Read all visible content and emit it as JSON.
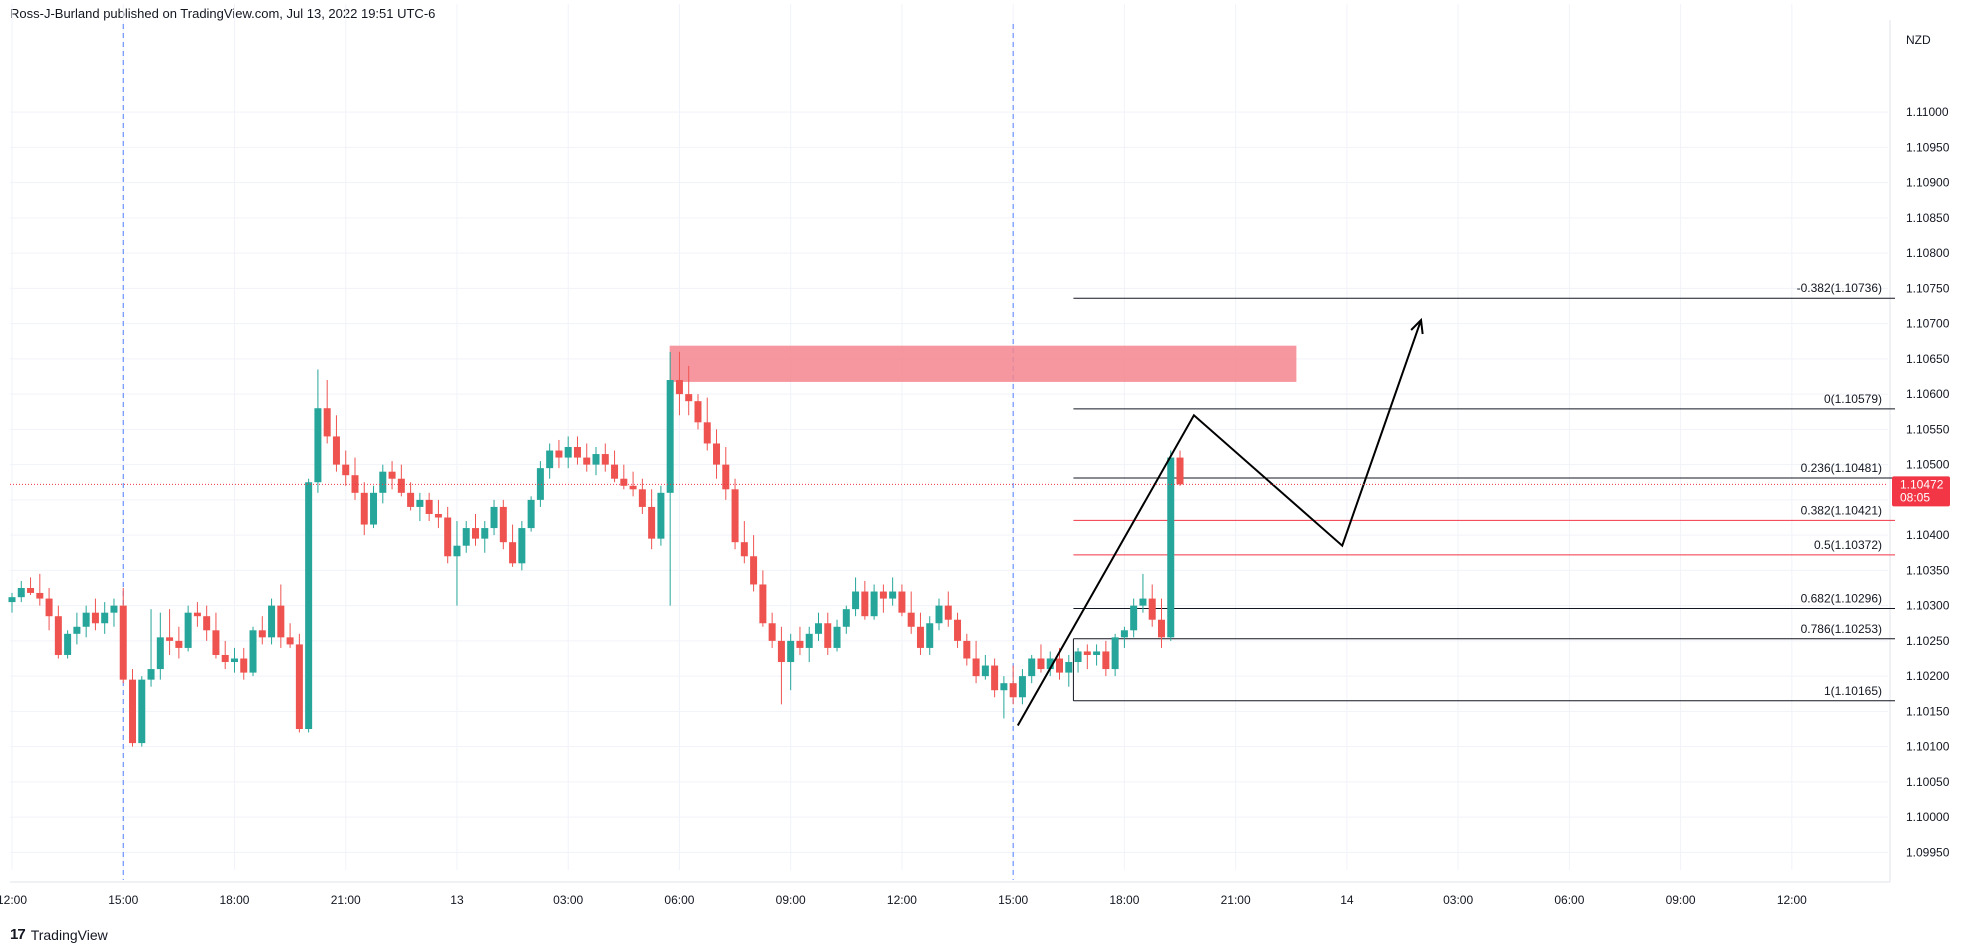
{
  "header": {
    "published": "Ross-J-Burland published on TradingView.com, Jul 13, 2022 19:51 UTC-6"
  },
  "footer": {
    "brand": "TradingView",
    "logo_glyph": "17"
  },
  "colors": {
    "up": "#26a69a",
    "down": "#ef5350",
    "grid": "#f0f3fa",
    "zone": "#f5868f",
    "last_price": "#f23645",
    "drawing": "#000000",
    "fib_red": "#f23645"
  },
  "chart_data": {
    "type": "candlestick",
    "symbol_currency": "NZD",
    "ylim": [
      1.09925,
      1.11125
    ],
    "y_ticks": [
      "1.11000",
      "1.10950",
      "1.10900",
      "1.10850",
      "1.10800",
      "1.10750",
      "1.10700",
      "1.10650",
      "1.10600",
      "1.10550",
      "1.10500",
      "1.10450",
      "1.10400",
      "1.10350",
      "1.10300",
      "1.10250",
      "1.10200",
      "1.10150",
      "1.10100",
      "1.10050",
      "1.10000",
      "1.09950"
    ],
    "x_ticks": [
      {
        "label": "12:00",
        "bar": 0
      },
      {
        "label": "15:00",
        "bar": 12
      },
      {
        "label": "18:00",
        "bar": 24
      },
      {
        "label": "21:00",
        "bar": 36
      },
      {
        "label": "13",
        "bar": 48
      },
      {
        "label": "03:00",
        "bar": 60
      },
      {
        "label": "06:00",
        "bar": 72
      },
      {
        "label": "09:00",
        "bar": 84
      },
      {
        "label": "12:00",
        "bar": 96
      },
      {
        "label": "15:00",
        "bar": 108
      },
      {
        "label": "18:00",
        "bar": 120
      },
      {
        "label": "21:00",
        "bar": 132
      },
      {
        "label": "14",
        "bar": 144
      },
      {
        "label": "03:00",
        "bar": 156
      },
      {
        "label": "06:00",
        "bar": 168
      },
      {
        "label": "09:00",
        "bar": 180
      },
      {
        "label": "12:00",
        "bar": 192
      }
    ],
    "session_breaks_bar": [
      12,
      108
    ],
    "last_price": {
      "value": "1.10472",
      "countdown": "08:05"
    },
    "candles": [
      [
        1.10305,
        1.10318,
        1.1029,
        1.10312
      ],
      [
        1.10312,
        1.10335,
        1.10305,
        1.10325
      ],
      [
        1.10325,
        1.1034,
        1.10315,
        1.10318
      ],
      [
        1.10318,
        1.10345,
        1.103,
        1.1031
      ],
      [
        1.1031,
        1.10325,
        1.10265,
        1.10285
      ],
      [
        1.10285,
        1.103,
        1.10225,
        1.1023
      ],
      [
        1.1023,
        1.10265,
        1.10225,
        1.1026
      ],
      [
        1.1026,
        1.1029,
        1.10245,
        1.1027
      ],
      [
        1.1027,
        1.103,
        1.10255,
        1.1029
      ],
      [
        1.1029,
        1.1031,
        1.10265,
        1.10275
      ],
      [
        1.10275,
        1.10305,
        1.1026,
        1.1029
      ],
      [
        1.1029,
        1.1031,
        1.1027,
        1.103
      ],
      [
        1.103,
        1.10325,
        1.1019,
        1.10195
      ],
      [
        1.10195,
        1.1021,
        1.101,
        1.10105
      ],
      [
        1.10105,
        1.102,
        1.101,
        1.10195
      ],
      [
        1.10195,
        1.10295,
        1.10185,
        1.1021
      ],
      [
        1.1021,
        1.1029,
        1.10195,
        1.10255
      ],
      [
        1.10255,
        1.10295,
        1.1023,
        1.1025
      ],
      [
        1.1025,
        1.1027,
        1.10225,
        1.1024
      ],
      [
        1.1024,
        1.103,
        1.10235,
        1.1029
      ],
      [
        1.1029,
        1.10305,
        1.1027,
        1.10285
      ],
      [
        1.10285,
        1.103,
        1.1025,
        1.10265
      ],
      [
        1.10265,
        1.1029,
        1.10225,
        1.1023
      ],
      [
        1.1023,
        1.1025,
        1.1021,
        1.1022
      ],
      [
        1.1022,
        1.1024,
        1.10205,
        1.10225
      ],
      [
        1.10225,
        1.1024,
        1.10195,
        1.10205
      ],
      [
        1.10205,
        1.1027,
        1.102,
        1.10265
      ],
      [
        1.10265,
        1.10285,
        1.10245,
        1.10255
      ],
      [
        1.10255,
        1.1031,
        1.10245,
        1.103
      ],
      [
        1.103,
        1.1033,
        1.1024,
        1.10255
      ],
      [
        1.10255,
        1.10275,
        1.1024,
        1.10245
      ],
      [
        1.10245,
        1.1026,
        1.1012,
        1.10125
      ],
      [
        1.10125,
        1.1048,
        1.1012,
        1.10475
      ],
      [
        1.10475,
        1.10635,
        1.1046,
        1.1058
      ],
      [
        1.1058,
        1.1062,
        1.1053,
        1.1054
      ],
      [
        1.1054,
        1.1057,
        1.1049,
        1.105
      ],
      [
        1.105,
        1.1052,
        1.1047,
        1.10485
      ],
      [
        1.10485,
        1.1051,
        1.1045,
        1.1046
      ],
      [
        1.1046,
        1.10475,
        1.104,
        1.10415
      ],
      [
        1.10415,
        1.1047,
        1.1041,
        1.1046
      ],
      [
        1.1046,
        1.105,
        1.10445,
        1.1049
      ],
      [
        1.1049,
        1.10505,
        1.10465,
        1.1048
      ],
      [
        1.1048,
        1.105,
        1.10455,
        1.1046
      ],
      [
        1.1046,
        1.10475,
        1.10435,
        1.1044
      ],
      [
        1.1044,
        1.1046,
        1.1042,
        1.1045
      ],
      [
        1.1045,
        1.1046,
        1.1042,
        1.1043
      ],
      [
        1.1043,
        1.1045,
        1.1041,
        1.10425
      ],
      [
        1.10425,
        1.1044,
        1.1036,
        1.1037
      ],
      [
        1.1037,
        1.1042,
        1.103,
        1.10385
      ],
      [
        1.10385,
        1.1042,
        1.10375,
        1.1041
      ],
      [
        1.1041,
        1.1043,
        1.10385,
        1.10395
      ],
      [
        1.10395,
        1.1042,
        1.10375,
        1.1041
      ],
      [
        1.1041,
        1.1045,
        1.104,
        1.1044
      ],
      [
        1.1044,
        1.1045,
        1.1038,
        1.1039
      ],
      [
        1.1039,
        1.10415,
        1.10355,
        1.1036
      ],
      [
        1.1036,
        1.1042,
        1.1035,
        1.1041
      ],
      [
        1.1041,
        1.10455,
        1.10405,
        1.1045
      ],
      [
        1.1045,
        1.10505,
        1.1044,
        1.10495
      ],
      [
        1.10495,
        1.1053,
        1.1048,
        1.1052
      ],
      [
        1.1052,
        1.10535,
        1.10495,
        1.1051
      ],
      [
        1.1051,
        1.1054,
        1.10495,
        1.10525
      ],
      [
        1.10525,
        1.1054,
        1.105,
        1.1051
      ],
      [
        1.1051,
        1.1053,
        1.1049,
        1.105
      ],
      [
        1.105,
        1.10525,
        1.10485,
        1.10515
      ],
      [
        1.10515,
        1.1053,
        1.1049,
        1.105
      ],
      [
        1.105,
        1.1052,
        1.10475,
        1.1048
      ],
      [
        1.1048,
        1.105,
        1.10465,
        1.1047
      ],
      [
        1.1047,
        1.1049,
        1.10455,
        1.10465
      ],
      [
        1.10465,
        1.1048,
        1.1043,
        1.1044
      ],
      [
        1.1044,
        1.10465,
        1.1038,
        1.10395
      ],
      [
        1.10395,
        1.1047,
        1.10385,
        1.1046
      ],
      [
        1.1046,
        1.1066,
        1.103,
        1.1062
      ],
      [
        1.1062,
        1.1066,
        1.1057,
        1.106
      ],
      [
        1.106,
        1.1064,
        1.1057,
        1.1059
      ],
      [
        1.1059,
        1.106,
        1.1055,
        1.1056
      ],
      [
        1.1056,
        1.10595,
        1.1052,
        1.1053
      ],
      [
        1.1053,
        1.1055,
        1.1048,
        1.105
      ],
      [
        1.105,
        1.10525,
        1.1045,
        1.10465
      ],
      [
        1.10465,
        1.1048,
        1.1038,
        1.1039
      ],
      [
        1.1039,
        1.1042,
        1.1036,
        1.1037
      ],
      [
        1.1037,
        1.104,
        1.1032,
        1.1033
      ],
      [
        1.1033,
        1.1035,
        1.1027,
        1.10275
      ],
      [
        1.10275,
        1.1029,
        1.1024,
        1.1025
      ],
      [
        1.1025,
        1.1027,
        1.1016,
        1.1022
      ],
      [
        1.1022,
        1.1026,
        1.1018,
        1.1025
      ],
      [
        1.1025,
        1.1027,
        1.1023,
        1.1024
      ],
      [
        1.1024,
        1.1027,
        1.1022,
        1.1026
      ],
      [
        1.1026,
        1.1029,
        1.1025,
        1.10275
      ],
      [
        1.10275,
        1.1029,
        1.1023,
        1.1024
      ],
      [
        1.1024,
        1.1028,
        1.10235,
        1.1027
      ],
      [
        1.1027,
        1.103,
        1.1026,
        1.10295
      ],
      [
        1.10295,
        1.1034,
        1.10285,
        1.1032
      ],
      [
        1.1032,
        1.10335,
        1.1028,
        1.10285
      ],
      [
        1.10285,
        1.1033,
        1.1028,
        1.1032
      ],
      [
        1.1032,
        1.1033,
        1.1029,
        1.1031
      ],
      [
        1.1031,
        1.1034,
        1.103,
        1.1032
      ],
      [
        1.1032,
        1.1033,
        1.10285,
        1.1029
      ],
      [
        1.1029,
        1.1032,
        1.1026,
        1.1027
      ],
      [
        1.1027,
        1.1029,
        1.1023,
        1.1024
      ],
      [
        1.1024,
        1.10285,
        1.1023,
        1.10275
      ],
      [
        1.10275,
        1.1031,
        1.10265,
        1.103
      ],
      [
        1.103,
        1.1032,
        1.1027,
        1.1028
      ],
      [
        1.1028,
        1.1029,
        1.1024,
        1.1025
      ],
      [
        1.1025,
        1.1026,
        1.10215,
        1.10225
      ],
      [
        1.10225,
        1.1025,
        1.1019,
        1.102
      ],
      [
        1.102,
        1.1023,
        1.10195,
        1.10215
      ],
      [
        1.10215,
        1.10225,
        1.1017,
        1.1018
      ],
      [
        1.1018,
        1.102,
        1.1014,
        1.1019
      ],
      [
        1.1019,
        1.10215,
        1.1016,
        1.1017
      ],
      [
        1.1017,
        1.1021,
        1.1016,
        1.102
      ],
      [
        1.102,
        1.1023,
        1.1019,
        1.10225
      ],
      [
        1.10225,
        1.10245,
        1.10205,
        1.1021
      ],
      [
        1.1021,
        1.10235,
        1.102,
        1.10225
      ],
      [
        1.10225,
        1.1024,
        1.10195,
        1.10205
      ],
      [
        1.10205,
        1.1023,
        1.10185,
        1.1022
      ],
      [
        1.1022,
        1.1024,
        1.10205,
        1.10235
      ],
      [
        1.10235,
        1.10245,
        1.1021,
        1.1023
      ],
      [
        1.1023,
        1.10245,
        1.10215,
        1.10235
      ],
      [
        1.10235,
        1.1025,
        1.102,
        1.1021
      ],
      [
        1.1021,
        1.1026,
        1.102,
        1.10255
      ],
      [
        1.10255,
        1.1027,
        1.1024,
        1.10265
      ],
      [
        1.10265,
        1.1031,
        1.10255,
        1.103
      ],
      [
        1.103,
        1.10345,
        1.1029,
        1.1031
      ],
      [
        1.1031,
        1.1033,
        1.1027,
        1.1028
      ],
      [
        1.1028,
        1.1031,
        1.1024,
        1.10255
      ],
      [
        1.10255,
        1.1052,
        1.1025,
        1.1051
      ],
      [
        1.1051,
        1.1052,
        1.1047,
        1.10472
      ]
    ],
    "fib_levels": [
      {
        "label": "-0.382(1.10736)",
        "value": 1.10736,
        "color": "#131722"
      },
      {
        "label": "0(1.10579)",
        "value": 1.10579,
        "color": "#131722"
      },
      {
        "label": "0.236(1.10481)",
        "value": 1.10481,
        "color": "#131722"
      },
      {
        "label": "0.382(1.10421)",
        "value": 1.10421,
        "color": "#f23645"
      },
      {
        "label": "0.5(1.10372)",
        "value": 1.10372,
        "color": "#f23645"
      },
      {
        "label": "0.682(1.10296)",
        "value": 1.10296,
        "color": "#131722"
      },
      {
        "label": "0.786(1.10253)",
        "value": 1.10253,
        "color": "#131722"
      },
      {
        "label": "1(1.10165)",
        "value": 1.10165,
        "color": "#131722"
      }
    ],
    "fib_start_bar": 114.5,
    "supply_zone": {
      "from_bar": 71,
      "to_bar": 138.5,
      "top": 1.10668,
      "bottom": 1.10618
    },
    "projection_path": [
      {
        "bar": 108.5,
        "price": 1.1013
      },
      {
        "bar": 127.5,
        "price": 1.1057
      },
      {
        "bar": 143.5,
        "price": 1.10385
      },
      {
        "bar": 152,
        "price": 1.10705
      }
    ]
  }
}
